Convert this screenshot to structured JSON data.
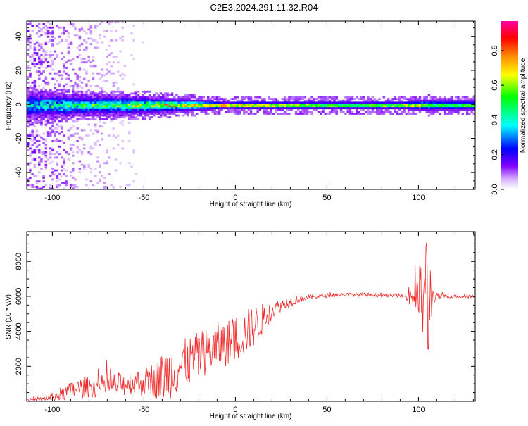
{
  "title": "C2E3.2024.291.11.32.R04",
  "chart_data": [
    {
      "type": "heatmap",
      "xlabel": "Height of straight line (km)",
      "ylabel": "Frequency (Hz)",
      "xlim": [
        -114,
        131
      ],
      "ylim": [
        -50,
        49
      ],
      "xticks": [
        -100,
        -50,
        0,
        50,
        100
      ],
      "yticks": [
        -40,
        -20,
        0,
        20,
        40
      ],
      "colorbar": {
        "label": "Normalized spectral amplitude",
        "range": [
          0,
          0.97
        ],
        "ticks": [
          0.0,
          0.2,
          0.4,
          0.6,
          0.8
        ],
        "tick_labels": [
          "0.0",
          "0.2",
          "0.4",
          "0.6",
          "0.8"
        ],
        "colors": [
          "#ffffff",
          "#d9b3ff",
          "#8000ff",
          "#0000ff",
          "#00ffff",
          "#00ff00",
          "#ffff00",
          "#ff8000",
          "#ff0000",
          "#ff00a0"
        ]
      },
      "structure": {
        "x": [
          -114,
          -95,
          -80,
          -60,
          -45,
          -30,
          -15,
          -5,
          0,
          30,
          60,
          90,
          100,
          105,
          110,
          131
        ],
        "band_halfwidth_hz": [
          8,
          7,
          6,
          6,
          5.5,
          4,
          3,
          2,
          2.5,
          2.5,
          2.5,
          2.5,
          3,
          3.5,
          3,
          3
        ],
        "peak_amplitude": [
          0.35,
          0.45,
          0.5,
          0.55,
          0.6,
          0.75,
          0.8,
          0.95,
          0.85,
          0.7,
          0.65,
          0.7,
          0.75,
          0.5,
          0.6,
          0.6
        ]
      }
    },
    {
      "type": "line",
      "xlabel": "Height of straight line (km)",
      "ylabel": "SNR (10 * v/v)",
      "xlim": [
        -114,
        131
      ],
      "ylim": [
        0,
        9700
      ],
      "xticks": [
        -100,
        -50,
        0,
        50,
        100
      ],
      "yticks": [
        2000,
        4000,
        6000,
        8000
      ],
      "line_color": "#ee2a2a",
      "envelope": {
        "x": [
          -114,
          -105,
          -100,
          -95,
          -90,
          -85,
          -80,
          -75,
          -70,
          -65,
          -60,
          -55,
          -50,
          -45,
          -40,
          -35,
          -30,
          -25,
          -20,
          -15,
          -10,
          -5,
          0,
          5,
          10,
          15,
          20,
          25,
          30,
          35,
          40,
          45,
          50,
          55,
          60,
          65,
          70,
          75,
          80,
          85,
          90,
          93,
          95,
          97,
          100,
          102,
          104,
          105,
          106,
          107,
          108,
          110,
          115,
          120,
          125,
          131
        ],
        "mean": [
          80,
          150,
          250,
          400,
          600,
          750,
          800,
          850,
          900,
          950,
          1000,
          1050,
          1100,
          1250,
          1400,
          1700,
          2000,
          2300,
          2600,
          2900,
          3100,
          3300,
          3600,
          3900,
          4300,
          4700,
          5200,
          5500,
          5700,
          5850,
          5950,
          6000,
          6050,
          6100,
          6100,
          6100,
          6100,
          6100,
          6050,
          6050,
          6050,
          6000,
          6100,
          6000,
          6000,
          6000,
          6000,
          6000,
          6000,
          6000,
          6000,
          6000,
          6000,
          6000,
          6000,
          6000
        ],
        "amplitude": [
          60,
          100,
          250,
          400,
          500,
          600,
          600,
          650,
          650,
          700,
          700,
          750,
          800,
          1000,
          1400,
          1500,
          1500,
          1400,
          1400,
          1300,
          1400,
          1300,
          1400,
          1300,
          1200,
          900,
          500,
          350,
          300,
          200,
          150,
          120,
          120,
          120,
          100,
          100,
          100,
          100,
          100,
          100,
          100,
          100,
          900,
          600,
          1500,
          2500,
          3500,
          5500,
          3000,
          1500,
          500,
          200,
          100,
          100,
          100,
          100
        ]
      }
    }
  ]
}
